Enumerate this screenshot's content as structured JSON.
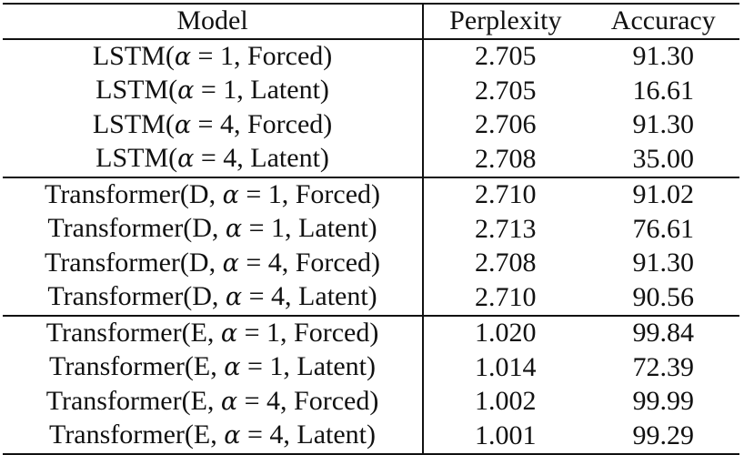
{
  "table": {
    "headers": [
      "Model",
      "Perplexity",
      "Accuracy"
    ],
    "groups": [
      {
        "name": "LSTM",
        "rows": [
          {
            "prefix": "LSTM(",
            "alpha": "α",
            "suffix": " = 1, Forced)",
            "perplexity": "2.705",
            "accuracy": "91.30"
          },
          {
            "prefix": "LSTM(",
            "alpha": "α",
            "suffix": " = 1, Latent)",
            "perplexity": "2.705",
            "accuracy": "16.61"
          },
          {
            "prefix": "LSTM(",
            "alpha": "α",
            "suffix": " = 4, Forced)",
            "perplexity": "2.706",
            "accuracy": "91.30"
          },
          {
            "prefix": "LSTM(",
            "alpha": "α",
            "suffix": " = 4, Latent)",
            "perplexity": "2.708",
            "accuracy": "35.00"
          }
        ]
      },
      {
        "name": "Transformer(D)",
        "rows": [
          {
            "prefix": "Transformer(D, ",
            "alpha": "α",
            "suffix": " = 1, Forced)",
            "perplexity": "2.710",
            "accuracy": "91.02"
          },
          {
            "prefix": "Transformer(D, ",
            "alpha": "α",
            "suffix": " = 1, Latent)",
            "perplexity": "2.713",
            "accuracy": "76.61"
          },
          {
            "prefix": "Transformer(D, ",
            "alpha": "α",
            "suffix": " = 4, Forced)",
            "perplexity": "2.708",
            "accuracy": "91.30"
          },
          {
            "prefix": "Transformer(D, ",
            "alpha": "α",
            "suffix": " = 4, Latent)",
            "perplexity": "2.710",
            "accuracy": "90.56"
          }
        ]
      },
      {
        "name": "Transformer(E)",
        "rows": [
          {
            "prefix": "Transformer(E, ",
            "alpha": "α",
            "suffix": " = 1, Forced)",
            "perplexity": "1.020",
            "accuracy": "99.84"
          },
          {
            "prefix": "Transformer(E, ",
            "alpha": "α",
            "suffix": " = 1, Latent)",
            "perplexity": "1.014",
            "accuracy": "72.39"
          },
          {
            "prefix": "Transformer(E, ",
            "alpha": "α",
            "suffix": " = 4, Forced)",
            "perplexity": "1.002",
            "accuracy": "99.99"
          },
          {
            "prefix": "Transformer(E, ",
            "alpha": "α",
            "suffix": " = 4, Latent)",
            "perplexity": "1.001",
            "accuracy": "99.29"
          }
        ]
      }
    ]
  }
}
